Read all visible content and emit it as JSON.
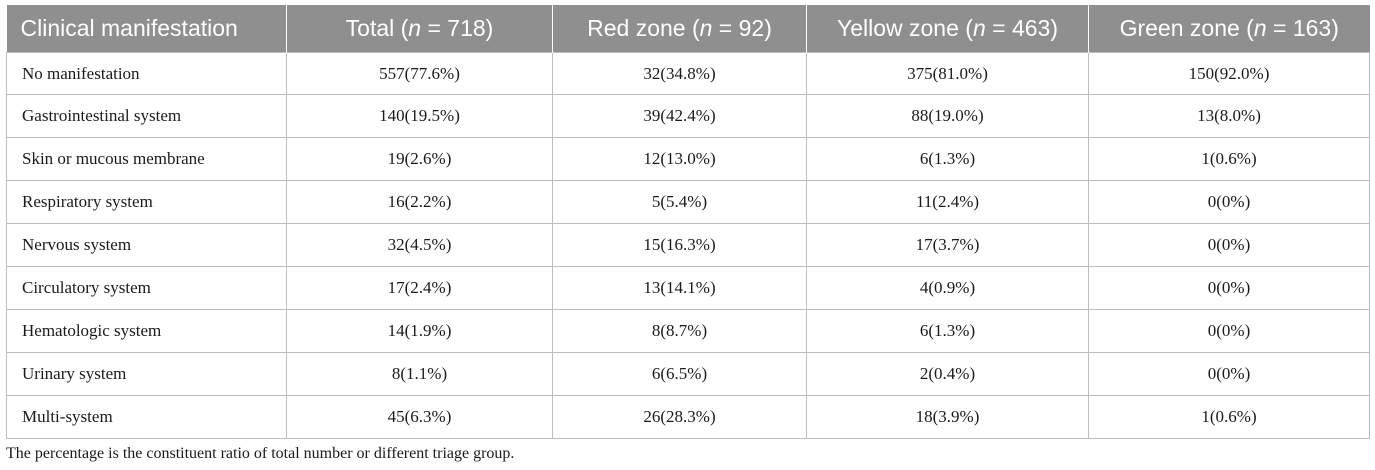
{
  "table": {
    "headers": [
      {
        "pre": "Clinical manifestation",
        "n": "",
        "post": ""
      },
      {
        "pre": "Total (",
        "n": "n",
        "post": " = 718)"
      },
      {
        "pre": "Red zone (",
        "n": "n",
        "post": " = 92)"
      },
      {
        "pre": "Yellow zone (",
        "n": "n",
        "post": " = 463)"
      },
      {
        "pre": "Green zone (",
        "n": "n",
        "post": " = 163)"
      }
    ],
    "rows": [
      [
        "No manifestation",
        "557(77.6%)",
        "32(34.8%)",
        "375(81.0%)",
        "150(92.0%)"
      ],
      [
        "Gastrointestinal system",
        "140(19.5%)",
        "39(42.4%)",
        "88(19.0%)",
        "13(8.0%)"
      ],
      [
        "Skin or mucous membrane",
        "19(2.6%)",
        "12(13.0%)",
        "6(1.3%)",
        "1(0.6%)"
      ],
      [
        "Respiratory system",
        "16(2.2%)",
        "5(5.4%)",
        "11(2.4%)",
        "0(0%)"
      ],
      [
        "Nervous system",
        "32(4.5%)",
        "15(16.3%)",
        "17(3.7%)",
        "0(0%)"
      ],
      [
        "Circulatory system",
        "17(2.4%)",
        "13(14.1%)",
        "4(0.9%)",
        "0(0%)"
      ],
      [
        "Hematologic system",
        "14(1.9%)",
        "8(8.7%)",
        "6(1.3%)",
        "0(0%)"
      ],
      [
        "Urinary system",
        "8(1.1%)",
        "6(6.5%)",
        "2(0.4%)",
        "0(0%)"
      ],
      [
        "Multi-system",
        "45(6.3%)",
        "26(28.3%)",
        "18(3.9%)",
        "1(0.6%)"
      ]
    ]
  },
  "footnote": "The percentage is the constituent ratio of total number or different triage group.",
  "colors": {
    "header_bg": "#8f8f8f",
    "header_text": "#ffffff",
    "grid": "#bdbdbd"
  }
}
